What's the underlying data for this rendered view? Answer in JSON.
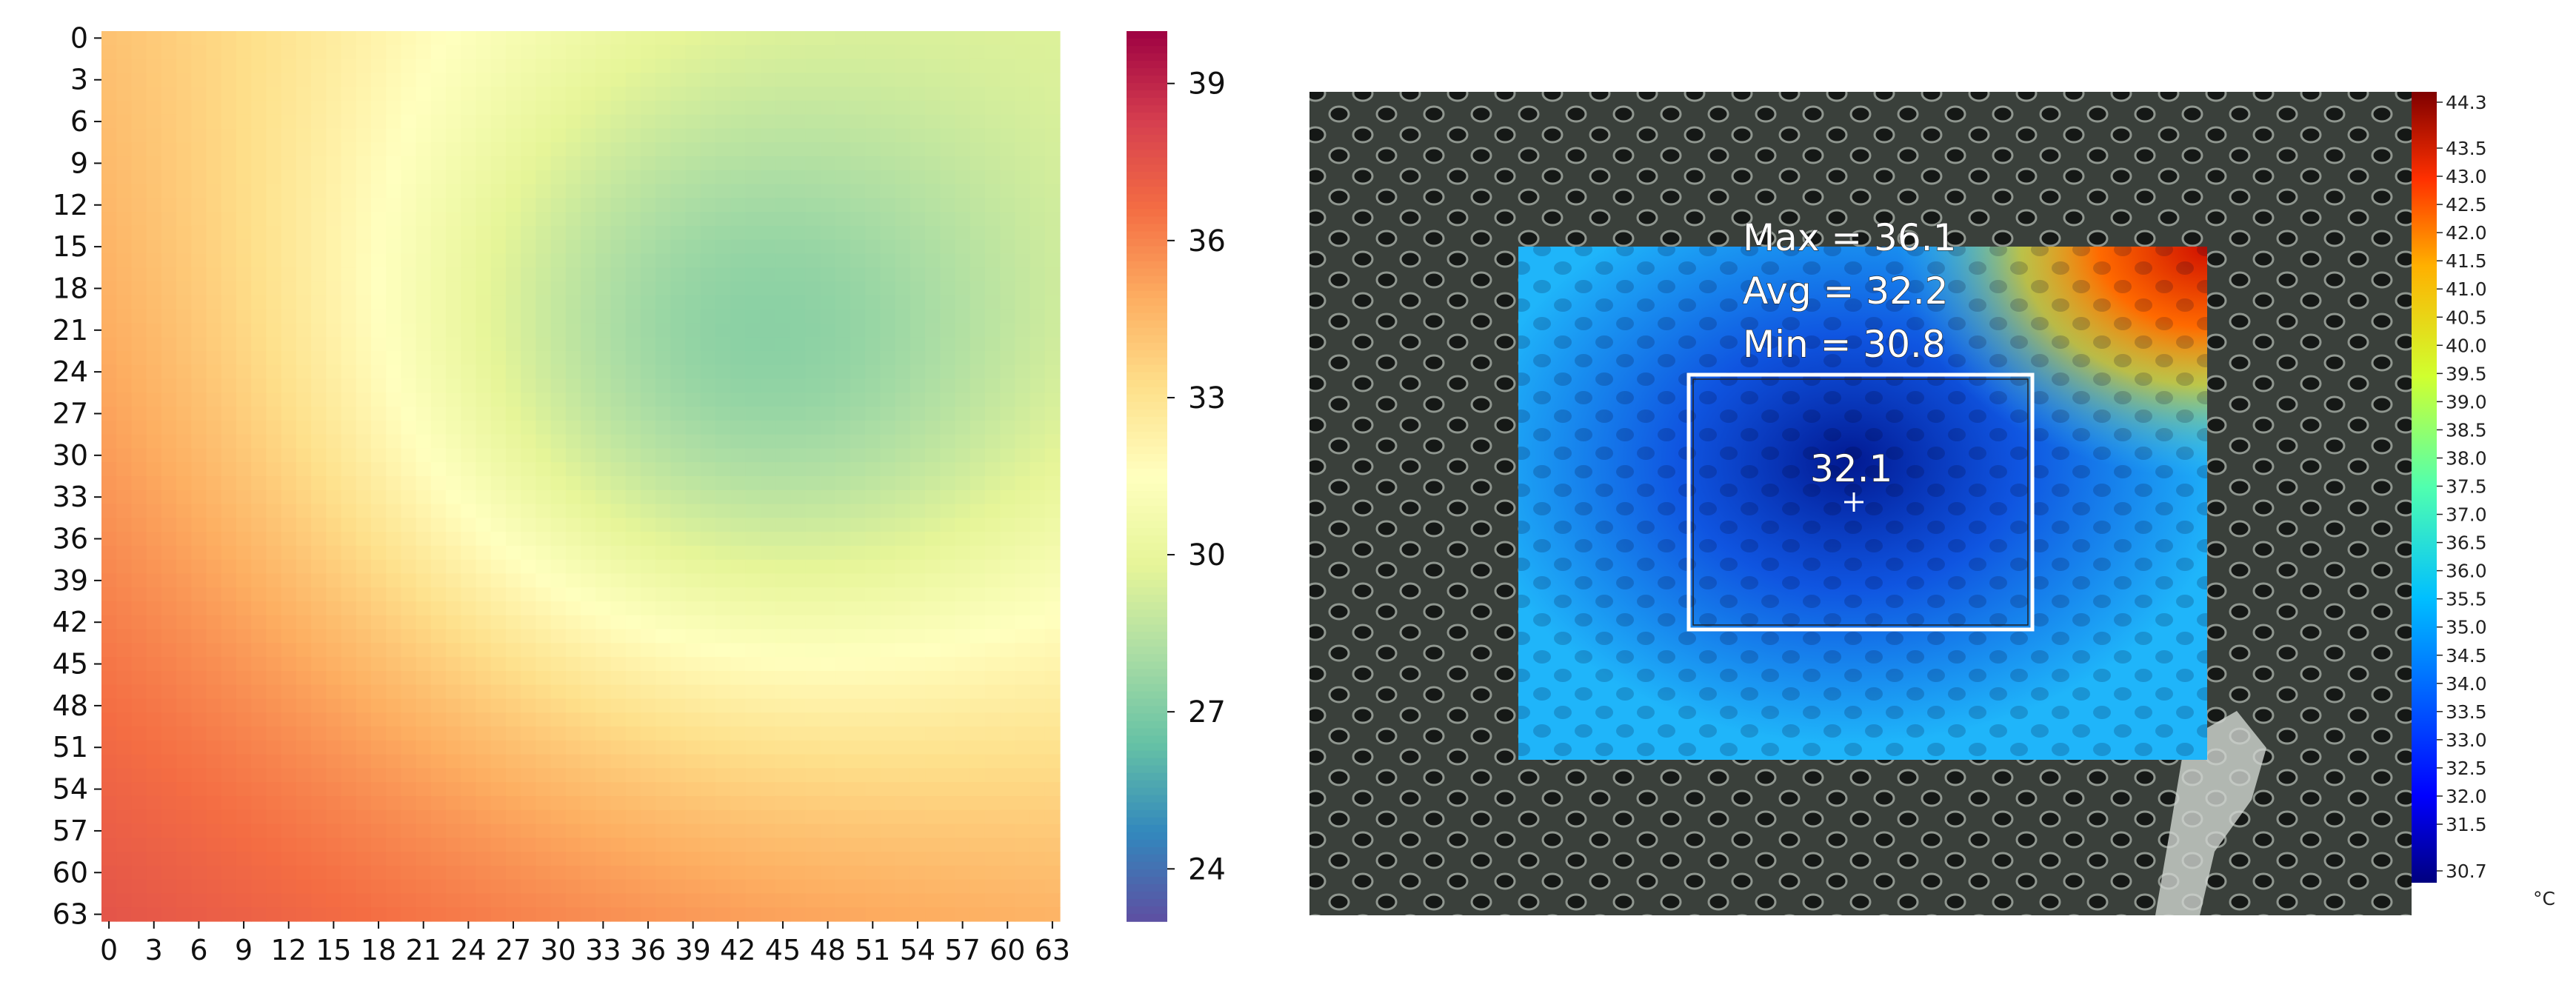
{
  "chart_data": [
    {
      "type": "heatmap",
      "title": "",
      "xlabel": "",
      "ylabel": "",
      "x_ticks": [
        "0",
        "3",
        "6",
        "9",
        "12",
        "15",
        "18",
        "21",
        "24",
        "27",
        "30",
        "33",
        "36",
        "39",
        "42",
        "45",
        "48",
        "51",
        "54",
        "57",
        "60",
        "63"
      ],
      "y_ticks": [
        "0",
        "3",
        "6",
        "9",
        "12",
        "15",
        "18",
        "21",
        "24",
        "27",
        "30",
        "33",
        "36",
        "39",
        "42",
        "45",
        "48",
        "51",
        "54",
        "57",
        "60",
        "63"
      ],
      "grid_size": [
        64,
        64
      ],
      "colormap": "Spectral_r",
      "colorbar": {
        "min": 23,
        "max": 40,
        "ticks": [
          "24",
          "27",
          "30",
          "33",
          "36",
          "39"
        ]
      },
      "value_field": {
        "description_values": "estimated temperatures; cool center near (x=44,y=21)",
        "corner_top_left": 34.5,
        "corner_top_right": 30.5,
        "corner_bottom_left": 37.5,
        "corner_bottom_right": 35.0,
        "minimum": 27.3,
        "minimum_at": [
          44,
          21
        ]
      }
    },
    {
      "type": "heatmap",
      "title": "",
      "colormap": "jet",
      "unit": "°C",
      "colorbar": {
        "min": 30.7,
        "max": 44.3,
        "ticks": [
          "44.3",
          "43.5",
          "43.0",
          "42.5",
          "42.0",
          "41.5",
          "41.0",
          "40.5",
          "40.0",
          "39.5",
          "39.0",
          "38.5",
          "38.0",
          "37.5",
          "37.0",
          "36.5",
          "36.0",
          "35.5",
          "35.0",
          "34.5",
          "34.0",
          "33.5",
          "33.0",
          "32.5",
          "32.0",
          "31.5",
          "30.7"
        ]
      },
      "overlay": {
        "max_label": "Max = 36.1",
        "avg_label": "Avg = 32.2",
        "min_label": "Min = 30.8",
        "spot_value": "32.1"
      }
    }
  ],
  "colors": {
    "thermal_background": "#2c322d",
    "box_stroke": "#ffffff"
  }
}
